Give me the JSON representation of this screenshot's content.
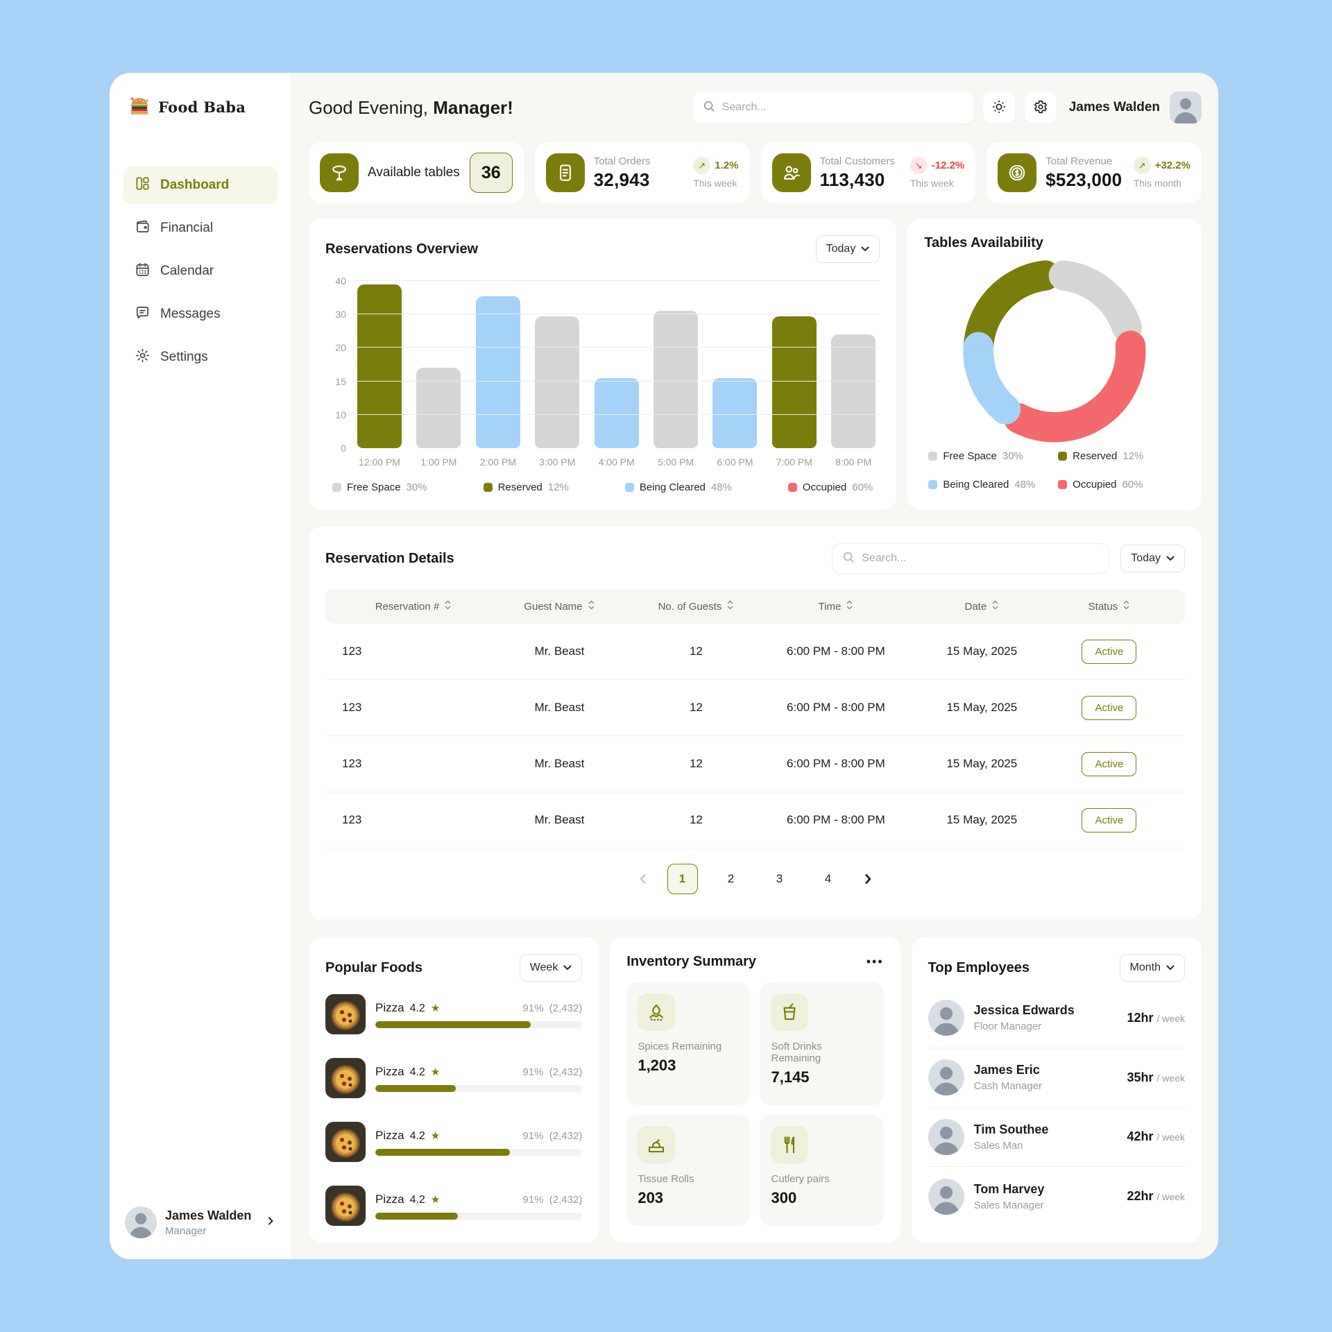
{
  "app_name": "Food Baba",
  "colors": {
    "accent": "#7a7d0b",
    "cream": "#eff0dd",
    "bar_gray": "#d6d6d6",
    "bar_blue": "#a5d2f8",
    "coral": "#f4696b",
    "page_bg": "#a9d2f7"
  },
  "sidebar": {
    "items": [
      {
        "label": "Dashboard"
      },
      {
        "label": "Financial"
      },
      {
        "label": "Calendar"
      },
      {
        "label": "Messages"
      },
      {
        "label": "Settings"
      }
    ],
    "user": {
      "name": "James Walden",
      "role": "Manager"
    }
  },
  "header": {
    "greeting_prefix": "Good Evening,",
    "greeting_name": "Manager!",
    "search_placeholder": "Search...",
    "user_name": "James Walden"
  },
  "stats": [
    {
      "label": "Available tables",
      "value": "36"
    },
    {
      "label": "Total Orders",
      "value": "32,943",
      "trend": "1.2%",
      "trend_arrow": "↗",
      "period": "This week"
    },
    {
      "label": "Total Customers",
      "value": "113,430",
      "trend": "-12.2%",
      "trend_arrow": "↘",
      "period": "This week"
    },
    {
      "label": "Total Revenue",
      "value": "$523,000",
      "trend": "+32.2%",
      "trend_arrow": "↗",
      "period": "This month"
    }
  ],
  "status_legend": [
    {
      "label": "Free Space",
      "value": "30%",
      "color": "#d6d6d6"
    },
    {
      "label": "Reserved",
      "value": "12%",
      "color": "#7a7d0b"
    },
    {
      "label": "Being Cleared",
      "value": "48%",
      "color": "#a5d2f8"
    },
    {
      "label": "Occupied",
      "value": "60%",
      "color": "#f4696b"
    }
  ],
  "chart_data": [
    {
      "type": "bar",
      "title": "Reservations Overview",
      "filter": "Today",
      "ylim": [
        0,
        40
      ],
      "yticks": [
        40,
        30,
        20,
        15,
        10,
        0
      ],
      "scale_stops": [
        [
          0,
          0
        ],
        [
          10,
          0.2
        ],
        [
          15,
          0.4
        ],
        [
          20,
          0.6
        ],
        [
          30,
          0.8
        ],
        [
          40,
          1
        ]
      ],
      "points": [
        {
          "x": "12:00 PM",
          "v": 39,
          "color": "#7a7d0b"
        },
        {
          "x": "1:00 PM",
          "v": 17,
          "color": "#d6d6d6"
        },
        {
          "x": "2:00 PM",
          "v": 35.5,
          "color": "#a5d2f8"
        },
        {
          "x": "3:00 PM",
          "v": 29.5,
          "color": "#d6d6d6"
        },
        {
          "x": "4:00 PM",
          "v": 15.5,
          "color": "#a5d2f8"
        },
        {
          "x": "5:00 PM",
          "v": 31,
          "color": "#d6d6d6"
        },
        {
          "x": "6:00 PM",
          "v": 15.5,
          "color": "#a5d2f8"
        },
        {
          "x": "7:00 PM",
          "v": 29.5,
          "color": "#7a7d0b"
        },
        {
          "x": "8:00 PM",
          "v": 24,
          "color": "#d6d6d6"
        }
      ]
    },
    {
      "type": "donut",
      "title": "Tables Availability",
      "segments": [
        {
          "label": "Reserved",
          "pct": 12,
          "color": "#7a7d0b",
          "start": 190,
          "end": 97
        },
        {
          "label": "Free Space",
          "pct": 30,
          "color": "#d6d6d6",
          "start": 83,
          "end": 18
        },
        {
          "label": "Occupied",
          "pct": 60,
          "color": "#f4696b",
          "start": 4,
          "end": -118
        },
        {
          "label": "Being Cleared",
          "pct": 48,
          "color": "#a5d2f8",
          "start": -130,
          "end": -183
        }
      ]
    }
  ],
  "reservation_details": {
    "title": "Reservation Details",
    "search_placeholder": "Search...",
    "filter": "Today",
    "columns": [
      "Reservation #",
      "Guest Name",
      "No. of Guests",
      "Time",
      "Date",
      "Status"
    ],
    "rows": [
      {
        "id": "123",
        "guest": "Mr. Beast",
        "guests": "12",
        "time": "6:00 PM - 8:00 PM",
        "date": "15 May, 2025",
        "status": "Active"
      },
      {
        "id": "123",
        "guest": "Mr. Beast",
        "guests": "12",
        "time": "6:00 PM - 8:00 PM",
        "date": "15 May, 2025",
        "status": "Active"
      },
      {
        "id": "123",
        "guest": "Mr. Beast",
        "guests": "12",
        "time": "6:00 PM - 8:00 PM",
        "date": "15 May, 2025",
        "status": "Active"
      },
      {
        "id": "123",
        "guest": "Mr. Beast",
        "guests": "12",
        "time": "6:00 PM - 8:00 PM",
        "date": "15 May, 2025",
        "status": "Active"
      }
    ],
    "pagination": {
      "pages": [
        {
          "label": "1",
          "state": "current"
        },
        {
          "label": "2",
          "state": ""
        },
        {
          "label": "3",
          "state": ""
        },
        {
          "label": "4",
          "state": ""
        }
      ]
    }
  },
  "popular_foods": {
    "title": "Popular Foods",
    "filter": "Week",
    "items": [
      {
        "name": "Pizza",
        "rating": "4.2",
        "pct": "91%",
        "count": "(2,432)",
        "bar": "75%"
      },
      {
        "name": "Pizza",
        "rating": "4.2",
        "pct": "91%",
        "count": "(2,432)",
        "bar": "39%"
      },
      {
        "name": "Pizza",
        "rating": "4.2",
        "pct": "91%",
        "count": "(2,432)",
        "bar": "65%"
      },
      {
        "name": "Pizza",
        "rating": "4.2",
        "pct": "91%",
        "count": "(2,432)",
        "bar": "40%"
      }
    ]
  },
  "inventory": {
    "title": "Inventory Summary",
    "menu": "•••",
    "items": [
      {
        "label": "Spices Remaining",
        "value": "1,203"
      },
      {
        "label": "Soft Drinks Remaining",
        "value": "7,145"
      },
      {
        "label": "Tissue Rolls",
        "value": "203"
      },
      {
        "label": "Cutlery pairs",
        "value": "300"
      }
    ]
  },
  "top_employees": {
    "title": "Top Employees",
    "filter": "Month",
    "items": [
      {
        "name": "Jessica Edwards",
        "role": "Floor Manager",
        "hours": "12hr",
        "per": "/ week"
      },
      {
        "name": "James Eric",
        "role": "Cash Manager",
        "hours": "35hr",
        "per": "/ week"
      },
      {
        "name": "Tim Southee",
        "role": "Sales Man",
        "hours": "42hr",
        "per": "/ week"
      },
      {
        "name": "Tom Harvey",
        "role": "Sales Manager",
        "hours": "22hr",
        "per": "/ week"
      }
    ]
  }
}
